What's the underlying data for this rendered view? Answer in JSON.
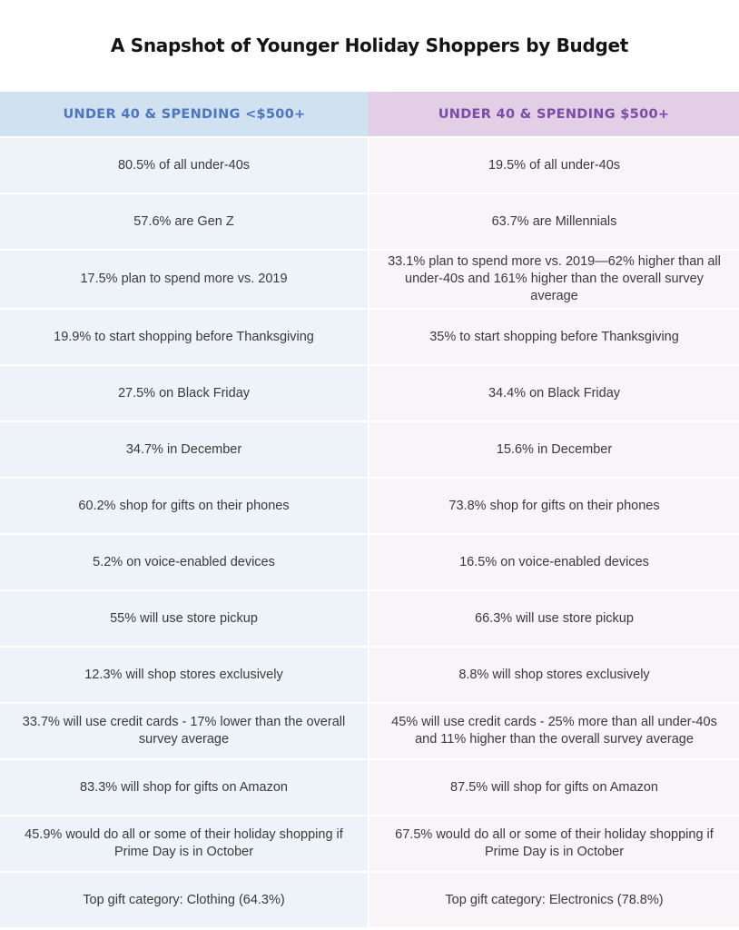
{
  "title": "A Snapshot of Younger Holiday Shoppers by Budget",
  "columns": [
    "UNDER 40 & SPENDING <$500+",
    "UNDER 40 & SPENDING $500+"
  ],
  "colors": {
    "left_header": "#d0e1f2",
    "left_header_text": "#4a77bd",
    "right_header": "#e2cfe6",
    "right_header_text": "#7b4ba8"
  },
  "chart_data": {
    "type": "table",
    "title": "A Snapshot of Younger Holiday Shoppers by Budget",
    "columns": [
      "UNDER 40 & SPENDING <$500+",
      "UNDER 40 & SPENDING $500+"
    ],
    "rows": [
      [
        "80.5% of all under-40s",
        "19.5% of all under-40s"
      ],
      [
        "57.6% are Gen Z",
        "63.7% are Millennials"
      ],
      [
        "17.5% plan to spend more vs. 2019",
        "33.1% plan to spend more vs. 2019—62% higher than all under-40s and 161% higher than the overall survey average"
      ],
      [
        "19.9% to start shopping before Thanksgiving",
        "35% to start shopping before Thanksgiving"
      ],
      [
        "27.5% on Black Friday",
        "34.4% on Black Friday"
      ],
      [
        "34.7% in December",
        "15.6% in December"
      ],
      [
        "60.2% shop for gifts on their phones",
        "73.8% shop for gifts on their phones"
      ],
      [
        "5.2% on voice-enabled devices",
        "16.5% on voice-enabled devices"
      ],
      [
        "55% will use store pickup",
        "66.3% will use store pickup"
      ],
      [
        "12.3% will shop stores exclusively",
        "8.8% will shop stores exclusively"
      ],
      [
        "33.7% will use credit cards - 17% lower than the overall survey average",
        "45% will use credit cards - 25% more than all under-40s and 11% higher than the overall survey average"
      ],
      [
        "83.3% will shop for gifts on Amazon",
        "87.5% will shop for gifts on Amazon"
      ],
      [
        "45.9% would do all or some of their holiday shopping if Prime Day is in October",
        "67.5% would do all or some of their holiday shopping if Prime Day is in October"
      ],
      [
        "Top gift category: Clothing (64.3%)",
        "Top gift category: Electronics (78.8%)"
      ]
    ]
  }
}
